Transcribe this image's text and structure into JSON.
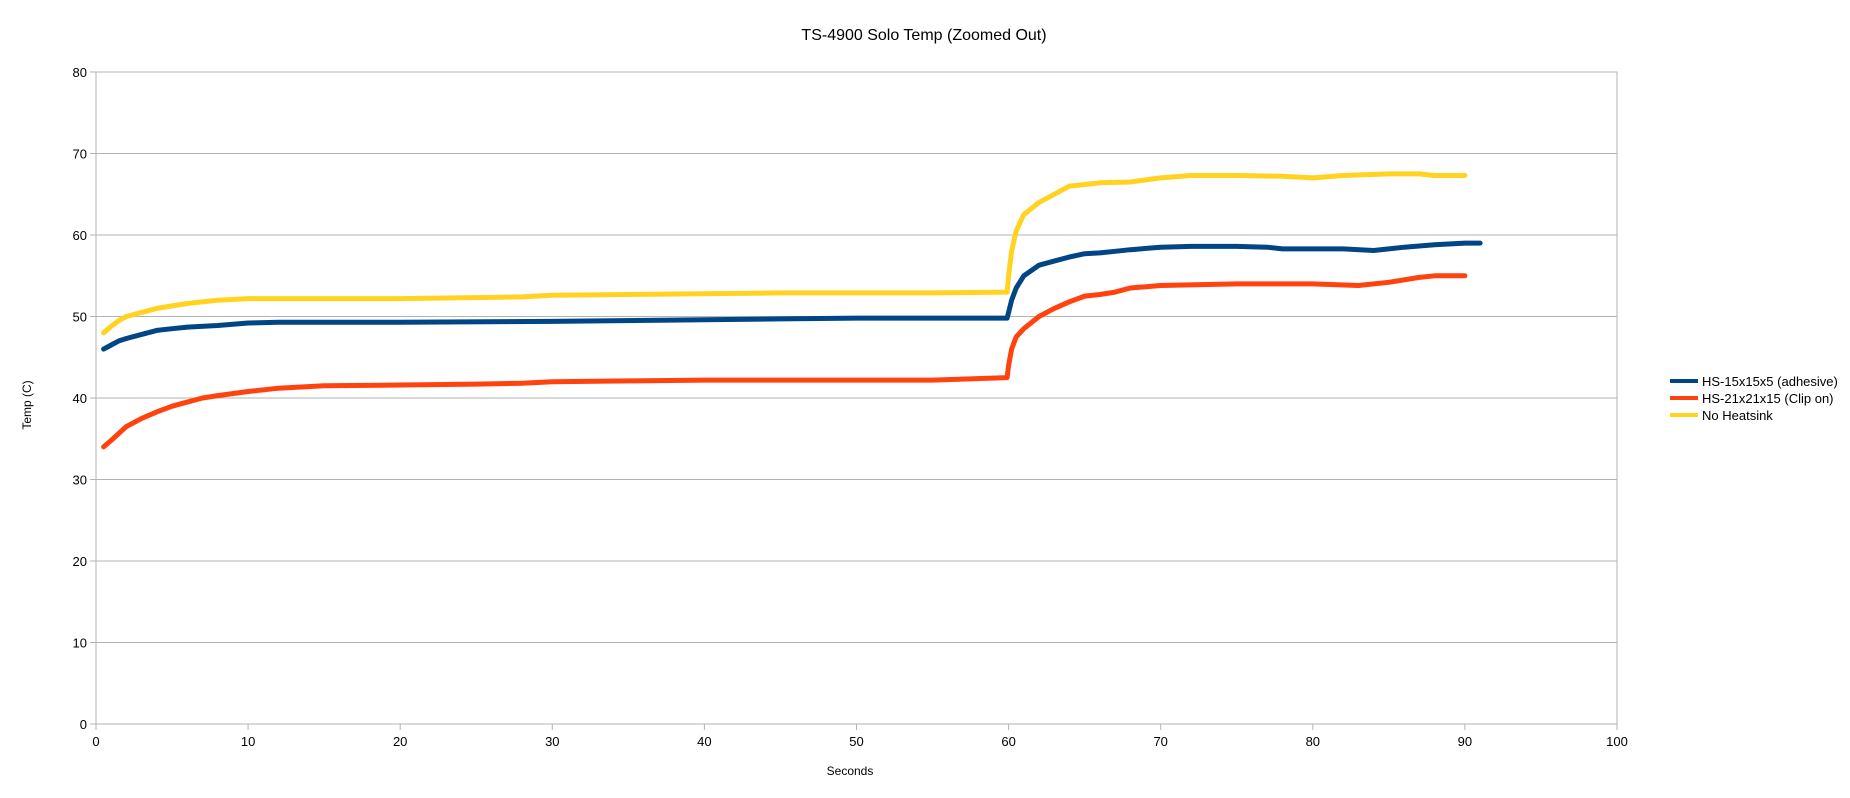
{
  "chart_data": {
    "type": "line",
    "title": "TS-4900 Solo Temp (Zoomed Out)",
    "xlabel": "Seconds",
    "ylabel": "Temp (C)",
    "xlim": [
      0,
      100
    ],
    "ylim": [
      0,
      80
    ],
    "xticks": [
      0,
      10,
      20,
      30,
      40,
      50,
      60,
      70,
      80,
      90,
      100
    ],
    "yticks": [
      0,
      10,
      20,
      30,
      40,
      50,
      60,
      70,
      80
    ],
    "grid": "horizontal",
    "legend_position": "right",
    "series": [
      {
        "name": "HS-15x15x5 (adhesive)",
        "color": "#004586",
        "x": [
          0.5,
          1,
          1.5,
          2,
          3,
          4,
          5,
          6,
          8,
          10,
          12,
          15,
          20,
          30,
          40,
          45,
          50,
          55,
          59.9,
          60,
          60.2,
          60.5,
          61,
          62,
          63,
          64,
          65,
          66,
          67,
          68,
          70,
          72,
          75,
          77,
          78,
          80,
          82,
          84,
          86,
          88,
          90,
          91
        ],
        "values": [
          46,
          46.5,
          47,
          47.3,
          47.8,
          48.3,
          48.5,
          48.7,
          48.9,
          49.2,
          49.3,
          49.3,
          49.3,
          49.4,
          49.6,
          49.7,
          49.8,
          49.8,
          49.8,
          50.5,
          52,
          53.5,
          55,
          56.3,
          56.8,
          57.3,
          57.7,
          57.8,
          58,
          58.2,
          58.5,
          58.6,
          58.6,
          58.5,
          58.3,
          58.3,
          58.3,
          58.1,
          58.5,
          58.8,
          59,
          59
        ]
      },
      {
        "name": "HS-21x21x15 (Clip on)",
        "color": "#ff420e",
        "x": [
          0.5,
          1,
          2,
          3,
          4,
          5,
          6,
          7,
          8,
          10,
          12,
          15,
          20,
          25,
          28,
          30,
          35,
          40,
          45,
          50,
          55,
          59.9,
          60,
          60.2,
          60.5,
          61,
          62,
          63,
          64,
          65,
          66,
          67,
          68,
          70,
          75,
          80,
          83,
          85,
          87,
          88,
          90
        ],
        "values": [
          34,
          34.8,
          36.5,
          37.5,
          38.3,
          39,
          39.5,
          40,
          40.3,
          40.8,
          41.2,
          41.5,
          41.6,
          41.7,
          41.8,
          42,
          42.1,
          42.2,
          42.2,
          42.2,
          42.2,
          42.5,
          44,
          46,
          47.5,
          48.5,
          50,
          51,
          51.8,
          52.5,
          52.7,
          53,
          53.5,
          53.8,
          54,
          54,
          53.8,
          54.2,
          54.8,
          55,
          55
        ]
      },
      {
        "name": "No Heatsink",
        "color": "#ffd320",
        "x": [
          0.5,
          1,
          1.5,
          2,
          3,
          4,
          5,
          6,
          8,
          10,
          15,
          20,
          28,
          30,
          35,
          40,
          45,
          50,
          55,
          59.9,
          60,
          60.2,
          60.5,
          61,
          62,
          63,
          64,
          65,
          66,
          68,
          70,
          72,
          75,
          78,
          80,
          82,
          85,
          87,
          88,
          90
        ],
        "values": [
          48,
          48.8,
          49.5,
          50,
          50.5,
          51,
          51.3,
          51.6,
          52,
          52.2,
          52.2,
          52.2,
          52.4,
          52.6,
          52.7,
          52.8,
          52.9,
          52.9,
          52.9,
          53,
          55,
          58,
          60.5,
          62.5,
          64,
          65,
          66,
          66.2,
          66.4,
          66.5,
          67,
          67.3,
          67.3,
          67.2,
          67,
          67.3,
          67.5,
          67.5,
          67.3,
          67.3
        ]
      }
    ]
  }
}
